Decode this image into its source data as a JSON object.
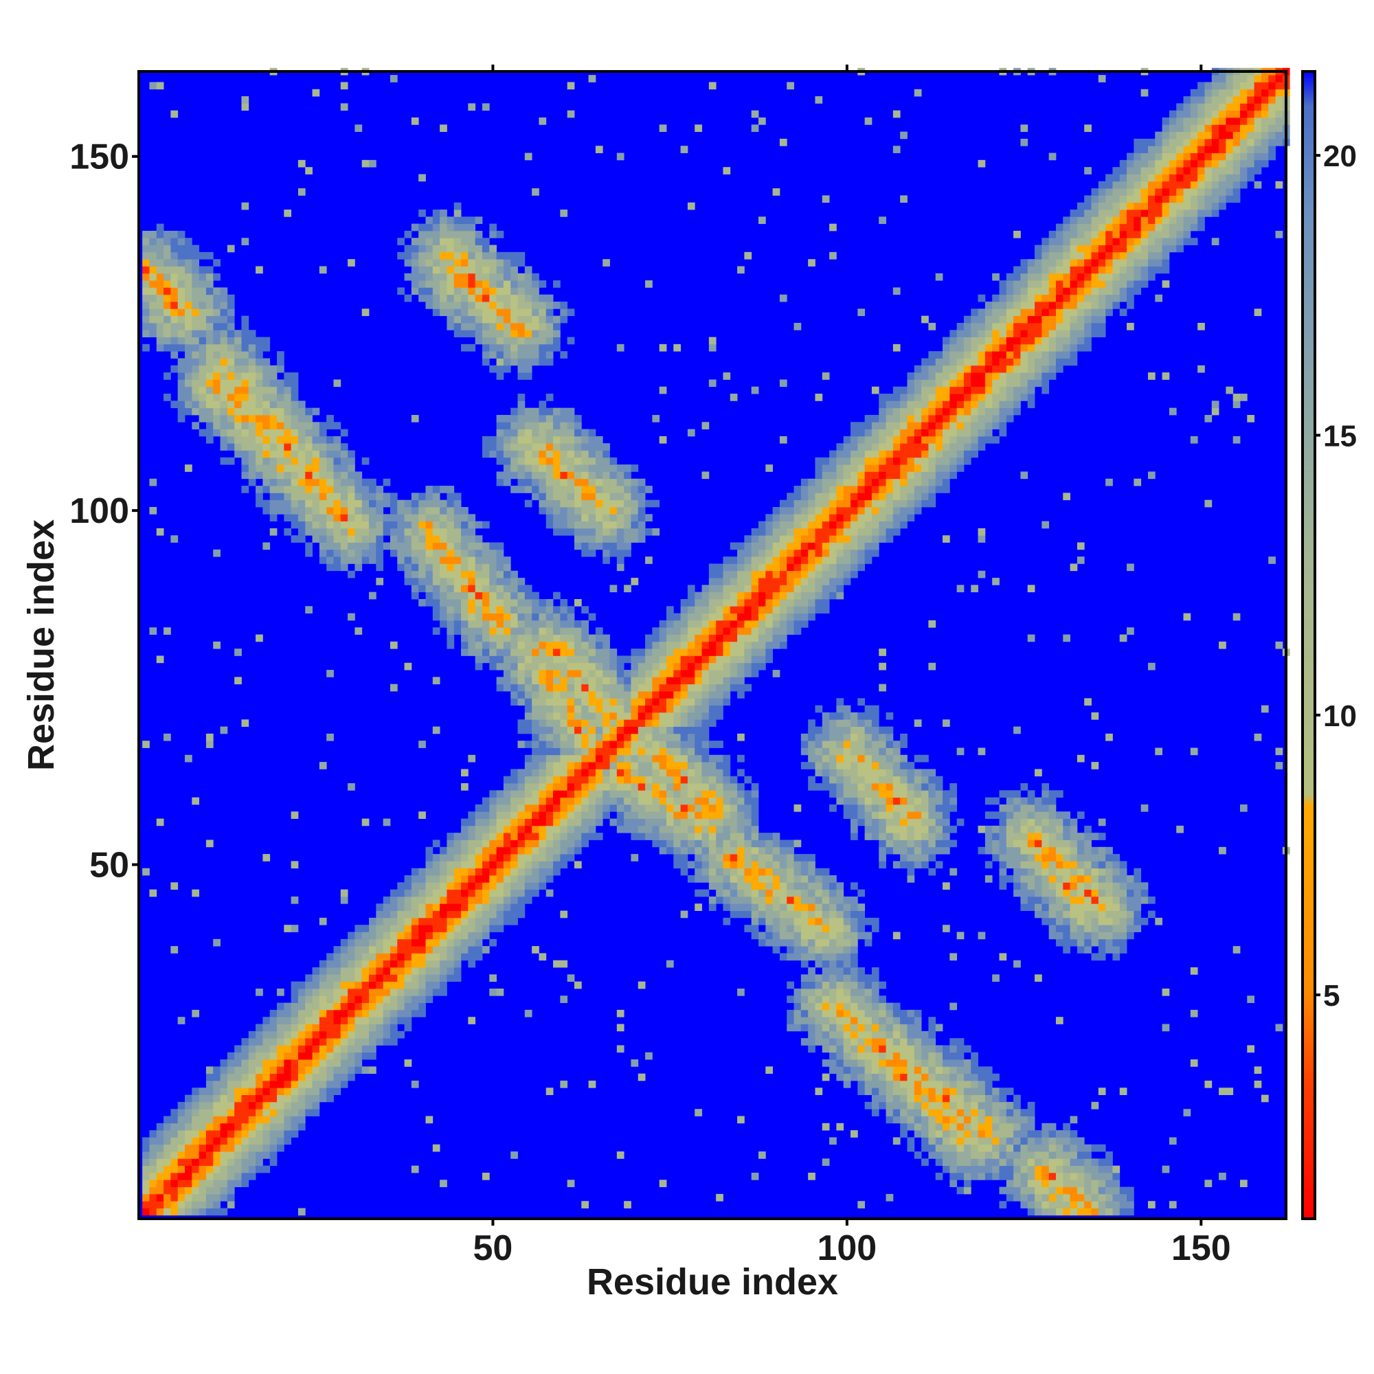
{
  "chart_data": {
    "type": "heatmap",
    "title": "",
    "xlabel": "Residue index",
    "ylabel": "Residue index",
    "n_residues": 162,
    "xlim": [
      1,
      162
    ],
    "ylim": [
      1,
      162
    ],
    "x_ticks": [
      50,
      100,
      150
    ],
    "y_ticks": [
      50,
      100,
      150
    ],
    "colorbar": {
      "ticks": [
        5,
        10,
        15,
        20
      ],
      "range": [
        1,
        21.5
      ],
      "colors": [
        "#ff0000",
        "#ff8c00",
        "#ffaa00",
        "#b5bf80",
        "#a8b890",
        "#8aa6a8",
        "#6c90c0",
        "#4a70c8",
        "#0000ff"
      ]
    },
    "background_color": "#0000ff",
    "description_of_values": "pairwise residue distance map: near-diagonal distances ~1-4 (red), secondary structure contacts 5-8 (orange), neighborhood 9-18 (sage/grey-blue), far >20 (blue)",
    "contact_bands": [
      {
        "type": "diagonal",
        "from": [
          1,
          1
        ],
        "to": [
          162,
          162
        ]
      },
      {
        "type": "anti",
        "from": [
          44,
          134
        ],
        "to": [
          54,
          126
        ]
      },
      {
        "type": "anti",
        "from": [
          11,
          118
        ],
        "to": [
          30,
          98
        ]
      },
      {
        "type": "anti",
        "from": [
          1,
          133
        ],
        "to": [
          6,
          128
        ]
      },
      {
        "type": "anti",
        "from": [
          56,
          109
        ],
        "to": [
          66,
          100
        ]
      },
      {
        "type": "anti",
        "from": [
          41,
          97
        ],
        "to": [
          48,
          88
        ]
      },
      {
        "type": "anti",
        "from": [
          58,
          81
        ],
        "to": [
          68,
          70
        ]
      },
      {
        "type": "anti",
        "from": [
          68,
          63
        ],
        "to": [
          80,
          56
        ]
      },
      {
        "type": "anti",
        "from": [
          84,
          51
        ],
        "to": [
          97,
          41
        ]
      },
      {
        "type": "anti",
        "from": [
          98,
          30
        ],
        "to": [
          120,
          12
        ]
      },
      {
        "type": "anti",
        "from": [
          100,
          66
        ],
        "to": [
          109,
          57
        ]
      },
      {
        "type": "anti",
        "from": [
          126,
          54
        ],
        "to": [
          136,
          44
        ]
      },
      {
        "type": "anti",
        "from": [
          128,
          7
        ],
        "to": [
          134,
          1
        ]
      }
    ]
  }
}
